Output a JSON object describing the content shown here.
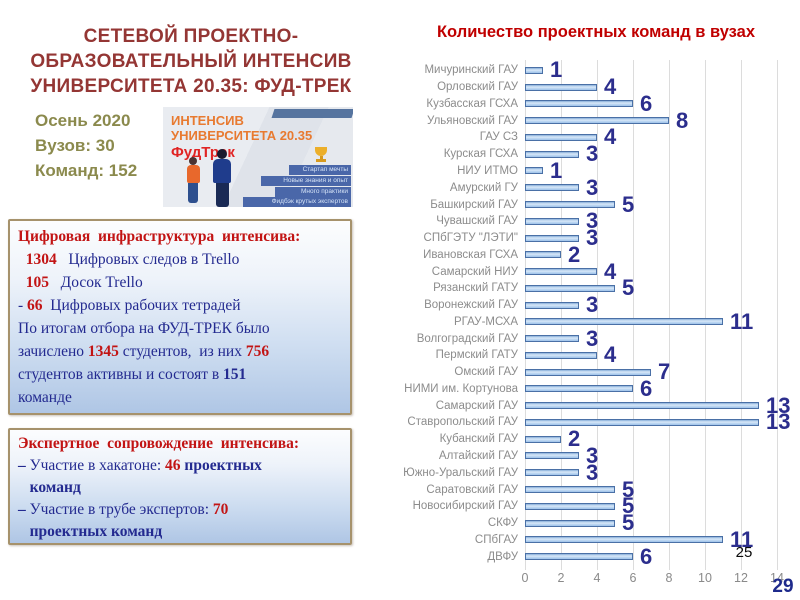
{
  "header": {
    "title_lines": [
      "СЕТЕВОЙ ПРОЕКТНО-",
      "ОБРАЗОВАТЕЛЬНЫЙ  ИНТЕНСИВ",
      "УНИВЕРСИТЕТА 20.35: ФУД-ТРЕК"
    ],
    "title_color": "#943634"
  },
  "stats": {
    "lines": [
      "Осень 2020",
      "Вузов: 30",
      "Команд: 152"
    ],
    "color": "#8b8a4d"
  },
  "banner": {
    "heading_line1": "ИНТЕНСИВ",
    "heading_line2": "УНИВЕРСИТЕТА 20.35",
    "brand": "ФудТрек",
    "steps": [
      "Стартап мечты",
      "Новые знания и опыт",
      "Много практики",
      "Фидбэк крутых экспертов"
    ]
  },
  "info_boxes": [
    {
      "name": "digital-infrastructure",
      "lines": [
        [
          {
            "t": "Цифровая  инфраструктура  интенсива:",
            "s": "red-bold"
          }
        ],
        [
          {
            "t": "  ",
            "s": "navy"
          },
          {
            "t": "1304",
            "s": "red-bold"
          },
          {
            "t": "   Цифровых следов в Trello",
            "s": "navy"
          }
        ],
        [
          {
            "t": "  ",
            "s": "navy"
          },
          {
            "t": "105",
            "s": "red-bold"
          },
          {
            "t": "   Досок Trello",
            "s": "navy"
          }
        ],
        [
          {
            "t": "- ",
            "s": "navy"
          },
          {
            "t": "66",
            "s": "red-bold"
          },
          {
            "t": "  Цифровых рабочих тетрадей",
            "s": "navy"
          }
        ],
        [
          {
            "t": "По итогам отбора на ФУД-ТРЕК было",
            "s": "navy"
          }
        ],
        [
          {
            "t": "зачислено ",
            "s": "navy"
          },
          {
            "t": "1345",
            "s": "red-bold"
          },
          {
            "t": " студентов,  из них ",
            "s": "navy"
          },
          {
            "t": "756",
            "s": "red-bold"
          }
        ],
        [
          {
            "t": "студентов активны и состоят в ",
            "s": "navy"
          },
          {
            "t": "151",
            "s": "navy-bold"
          }
        ],
        [
          {
            "t": "команде",
            "s": "navy"
          }
        ]
      ]
    },
    {
      "name": "expert-support",
      "lines": [
        [
          {
            "t": "Экспертное  сопровождение  интенсива:",
            "s": "red-bold"
          }
        ],
        [
          {
            "t": "– ",
            "s": "navy-bold"
          },
          {
            "t": "Участие в хакатоне: ",
            "s": "navy"
          },
          {
            "t": "46",
            "s": "red-bold"
          },
          {
            "t": " проектных",
            "s": "navy-bold"
          }
        ],
        [
          {
            "t": "   команд",
            "s": "navy-bold"
          }
        ],
        [
          {
            "t": "– ",
            "s": "navy-bold"
          },
          {
            "t": "Участие в трубе экспертов: ",
            "s": "navy"
          },
          {
            "t": "70",
            "s": "red-bold"
          }
        ],
        [
          {
            "t": "   проектных команд",
            "s": "navy-bold"
          }
        ]
      ]
    }
  ],
  "chart_data": {
    "type": "bar",
    "orientation": "horizontal",
    "title": "Количество проектных команд в вузах",
    "title_color": "#c00000",
    "categories": [
      "Мичуринский ГАУ",
      "Орловский ГАУ",
      "Кузбасская ГСХА",
      "Ульяновский ГАУ",
      "ГАУ СЗ",
      "Курская ГСХА",
      "НИУ ИТМО",
      "Амурский ГУ",
      "Башкирский ГАУ",
      "Чувашский ГАУ",
      "СПбГЭТУ \"ЛЭТИ\"",
      "Ивановская ГСХА",
      "Самарский НИУ",
      "Рязанский ГАТУ",
      "Воронежский ГАУ",
      "РГАУ-МСХА",
      "Волгоградский ГАУ",
      "Пермский ГАТУ",
      "Омский ГАУ",
      "НИМИ им. Кортунова",
      "Самарский ГАУ",
      "Ставропольский ГАУ",
      "Кубанский ГАУ",
      "Алтайский ГАУ",
      "Южно-Уральский ГАУ",
      "Саратовский ГАУ",
      "Новосибирский ГАУ",
      "СКФУ",
      "СПбГАУ",
      "ДВФУ"
    ],
    "values": [
      1,
      4,
      6,
      8,
      4,
      3,
      1,
      3,
      5,
      3,
      3,
      2,
      4,
      5,
      3,
      11,
      3,
      4,
      7,
      6,
      13,
      13,
      2,
      3,
      3,
      5,
      5,
      5,
      11,
      6
    ],
    "xlabel": "",
    "ylabel": "",
    "xlim": [
      0,
      14
    ],
    "xticks": [
      0,
      2,
      4,
      6,
      8,
      10,
      12,
      14
    ],
    "grid": true,
    "legend": false,
    "bar_fill": "#aecbed",
    "bar_border": "#4a70a6",
    "value_label_color": "#2c2e8d",
    "category_label_color": "#8c8c8c"
  },
  "page_numbers": {
    "black": "25",
    "blue": "29"
  }
}
